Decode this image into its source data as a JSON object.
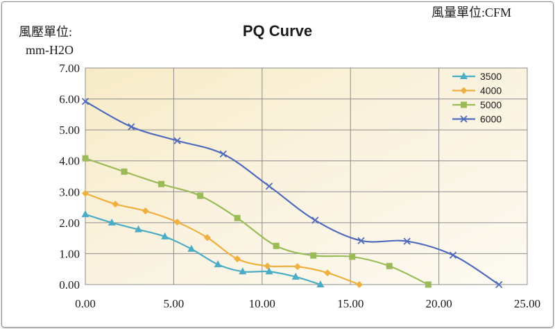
{
  "chart_data": {
    "type": "line",
    "title": "PQ Curve",
    "ylabel_line1": "風壓單位:",
    "ylabel_line2": "mm-H2O",
    "xlabel": "風量單位:CFM",
    "xlim": [
      0,
      25
    ],
    "ylim": [
      0,
      7
    ],
    "x_ticks": [
      "0.00",
      "5.00",
      "10.00",
      "15.00",
      "20.00",
      "25.00"
    ],
    "y_ticks": [
      "0.00",
      "1.00",
      "2.00",
      "3.00",
      "4.00",
      "5.00",
      "6.00",
      "7.00"
    ],
    "grid": true,
    "legend_position": "top-right",
    "series": [
      {
        "name": "3500",
        "color": "#4bacc6",
        "marker": "triangle",
        "x": [
          0.0,
          1.5,
          3.0,
          4.5,
          6.0,
          7.5,
          8.9,
          10.4,
          11.9,
          13.3
        ],
        "y": [
          2.27,
          2.0,
          1.78,
          1.55,
          1.15,
          0.65,
          0.42,
          0.42,
          0.25,
          0.0
        ]
      },
      {
        "name": "4000",
        "color": "#f0b040",
        "marker": "diamond",
        "x": [
          0.0,
          1.7,
          3.4,
          5.2,
          6.9,
          8.6,
          10.3,
          12.0,
          13.7,
          15.5
        ],
        "y": [
          2.95,
          2.6,
          2.38,
          2.02,
          1.52,
          0.83,
          0.6,
          0.58,
          0.38,
          0.0
        ]
      },
      {
        "name": "5000",
        "color": "#9bbb59",
        "marker": "square",
        "x": [
          0.0,
          2.2,
          4.3,
          6.5,
          8.6,
          10.8,
          12.9,
          15.1,
          17.2,
          19.4
        ],
        "y": [
          4.08,
          3.65,
          3.25,
          2.87,
          2.15,
          1.25,
          0.94,
          0.9,
          0.6,
          0.0
        ]
      },
      {
        "name": "6000",
        "color": "#4f6bbd",
        "marker": "x",
        "x": [
          0.0,
          2.6,
          5.2,
          7.8,
          10.4,
          13.0,
          15.6,
          18.2,
          20.8,
          23.4
        ],
        "y": [
          5.92,
          5.1,
          4.65,
          4.22,
          3.18,
          2.08,
          1.42,
          1.4,
          0.95,
          0.0
        ]
      }
    ]
  }
}
